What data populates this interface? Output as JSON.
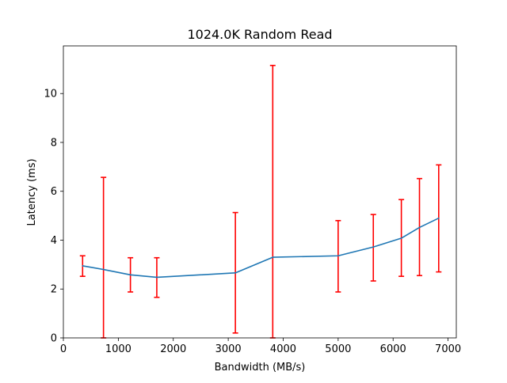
{
  "chart_data": {
    "type": "line",
    "title": "1024.0K  Random Read",
    "xlabel": "Bandwidth (MB/s)",
    "ylabel": "Latency (ms)",
    "xlim": [
      0,
      7150
    ],
    "ylim": [
      0,
      11.95
    ],
    "xticks": [
      0,
      1000,
      2000,
      3000,
      4000,
      5000,
      6000,
      7000
    ],
    "yticks": [
      0,
      2,
      4,
      6,
      8,
      10
    ],
    "grid": false,
    "legend": "none",
    "series": [
      {
        "x": [
          350,
          730,
          1220,
          1700,
          3130,
          3810,
          5000,
          5640,
          6150,
          6480,
          6830
        ],
        "y": [
          2.95,
          2.8,
          2.58,
          2.48,
          2.66,
          3.3,
          3.36,
          3.72,
          4.08,
          4.52,
          4.9
        ],
        "err_low": [
          2.52,
          0.0,
          1.88,
          1.66,
          0.2,
          0.0,
          1.88,
          2.33,
          2.52,
          2.55,
          2.7
        ],
        "err_high": [
          3.36,
          6.57,
          3.28,
          3.28,
          5.13,
          11.15,
          4.8,
          5.05,
          5.66,
          6.52,
          7.08
        ]
      }
    ],
    "colors": {
      "line": "#1f77b4",
      "errorbar": "#ff0000"
    }
  }
}
